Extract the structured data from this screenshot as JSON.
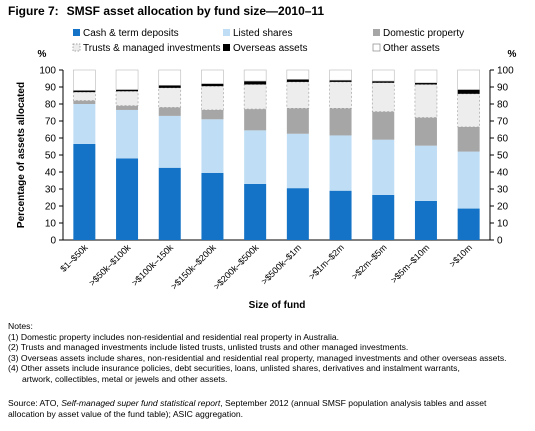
{
  "figure": {
    "label": "Figure 7:",
    "title": "SMSF asset allocation by fund size—2010–11"
  },
  "chart_data": {
    "type": "bar",
    "stacked": true,
    "title": "SMSF asset allocation by fund size—2010–11",
    "xlabel": "Size of fund",
    "ylabel": "Percentage of assets allocated",
    "y_unit": "%",
    "ylim": [
      0,
      100
    ],
    "yticks": [
      0,
      10,
      20,
      30,
      40,
      50,
      60,
      70,
      80,
      90,
      100
    ],
    "grid": false,
    "legend_position": "top",
    "categories": [
      "$1–$50k",
      ">$50k–$100k",
      ">$100k–150k",
      ">$150k–$200k",
      ">$200k–$500k",
      ">$500k–$1m",
      ">$1m–$2m",
      ">$2m–$5m",
      ">$5m–$10m",
      ">$10m"
    ],
    "series": [
      {
        "name": "Cash & term deposits",
        "color": "#1473C6",
        "values": [
          56.5,
          48,
          42.5,
          39.5,
          33,
          30.5,
          29,
          26.5,
          23,
          18.5
        ]
      },
      {
        "name": "Listed shares",
        "color": "#BFDDF5",
        "values": [
          23.5,
          28.5,
          30.5,
          31.5,
          31.5,
          32,
          32.5,
          32.5,
          32.5,
          33.5
        ]
      },
      {
        "name": "Domestic property",
        "color": "#A6A6A6",
        "values": [
          2,
          2.5,
          5,
          5.5,
          12.5,
          15,
          16,
          16.5,
          16.5,
          14.5
        ]
      },
      {
        "name": "Trusts & managed  investments",
        "color": "#EDEDED",
        "values": [
          5,
          8.5,
          11.5,
          14,
          14.5,
          15.5,
          15.5,
          17,
          19.5,
          19.5
        ]
      },
      {
        "name": "Overseas assets",
        "color": "#000000",
        "values": [
          1,
          1,
          1.5,
          1.5,
          2,
          1.5,
          1,
          1,
          1,
          2.5
        ]
      },
      {
        "name": "Other assets",
        "color": "#FFFFFF",
        "values": [
          12,
          11.5,
          9,
          8,
          6.5,
          5.5,
          6,
          6.5,
          7.5,
          11.5
        ]
      }
    ]
  },
  "notes": {
    "heading": "Notes:",
    "items": [
      "(1)  Domestic property includes non-residential and residential real property in Australia.",
      "(2)  Trusts and managed investments include listed trusts, unlisted trusts and other managed investments.",
      "(3)  Overseas assets include shares, non-residential and residential real property, managed investments and other overseas assets.",
      "(4)  Other assets include insurance policies, debt securities, loans, unlisted shares, derivatives and instalment warrants,"
    ],
    "item4_cont": "artwork, collectibles, metal or jewels and other assets."
  },
  "source": {
    "prefix": "Source: ATO, ",
    "italic": "Self-managed super fund statistical report",
    "rest1": ", September 2012 (annual SMSF population analysis tables and asset",
    "line2": "allocation by asset value of the fund table); ASIC aggregation."
  }
}
